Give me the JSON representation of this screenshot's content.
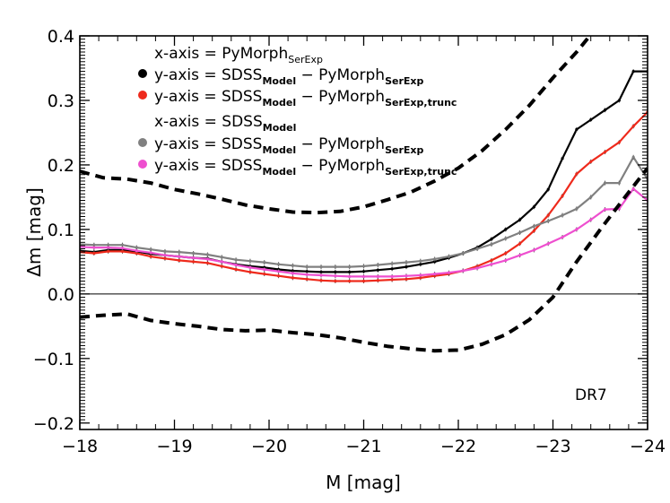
{
  "chart_data": {
    "type": "line",
    "xlabel": "M [mag]",
    "ylabel": "Δm [mag]",
    "xlim": [
      -18,
      -24
    ],
    "ylim": [
      -0.21,
      0.4
    ],
    "x_ticks": [
      -18,
      -19,
      -20,
      -21,
      -22,
      -23,
      -24
    ],
    "x_tick_labels": [
      "−18",
      "−19",
      "−20",
      "−21",
      "−22",
      "−23",
      "−24"
    ],
    "y_ticks": [
      -0.2,
      -0.1,
      0.0,
      0.1,
      0.2,
      0.3,
      0.4
    ],
    "y_tick_labels": [
      "−0.2",
      "−0.1",
      "0.0",
      "0.1",
      "0.2",
      "0.3",
      "0.4"
    ],
    "annotation": "DR7",
    "legend": {
      "placement": "top-left",
      "group1_header": "x-axis = PyMorph",
      "group1_header_sub": "SerExp",
      "group2_header": "x-axis = SDSS",
      "group2_header_sub": "Model"
    },
    "series": [
      {
        "name": "y-axis = SDSS_Model − PyMorph_SerExp",
        "label_parts": [
          "y-axis = SDSS",
          "Model",
          " − PyMorph",
          "SerExp"
        ],
        "color": "#000000",
        "group": 1,
        "x": [
          -18.0,
          -18.15,
          -18.3,
          -18.45,
          -18.6,
          -18.75,
          -18.9,
          -19.05,
          -19.2,
          -19.35,
          -19.5,
          -19.65,
          -19.8,
          -19.95,
          -20.1,
          -20.25,
          -20.4,
          -20.55,
          -20.7,
          -20.85,
          -21.0,
          -21.15,
          -21.3,
          -21.45,
          -21.6,
          -21.75,
          -21.9,
          -22.05,
          -22.2,
          -22.35,
          -22.5,
          -22.65,
          -22.8,
          -22.95,
          -23.1,
          -23.25,
          -23.4,
          -23.55,
          -23.7,
          -23.85,
          -24.0
        ],
        "y": [
          0.067,
          0.065,
          0.068,
          0.068,
          0.066,
          0.062,
          0.06,
          0.058,
          0.056,
          0.055,
          0.05,
          0.046,
          0.043,
          0.041,
          0.038,
          0.036,
          0.035,
          0.034,
          0.034,
          0.034,
          0.035,
          0.037,
          0.039,
          0.042,
          0.046,
          0.05,
          0.056,
          0.063,
          0.072,
          0.085,
          0.1,
          0.115,
          0.135,
          0.162,
          0.21,
          0.255,
          0.27,
          0.285,
          0.3,
          0.345,
          0.345
        ]
      },
      {
        "name": "y-axis = SDSS_Model − PyMorph_SerExp,trunc",
        "label_parts": [
          "y-axis = SDSS",
          "Model",
          " − PyMorph",
          "SerExp,trunc"
        ],
        "color": "#ee2a1c",
        "group": 1,
        "x": [
          -18.0,
          -18.15,
          -18.3,
          -18.45,
          -18.6,
          -18.75,
          -18.9,
          -19.05,
          -19.2,
          -19.35,
          -19.5,
          -19.65,
          -19.8,
          -19.95,
          -20.1,
          -20.25,
          -20.4,
          -20.55,
          -20.7,
          -20.85,
          -21.0,
          -21.15,
          -21.3,
          -21.45,
          -21.6,
          -21.75,
          -21.9,
          -22.05,
          -22.2,
          -22.35,
          -22.5,
          -22.65,
          -22.8,
          -22.95,
          -23.1,
          -23.25,
          -23.4,
          -23.55,
          -23.7,
          -23.85,
          -24.0
        ],
        "y": [
          0.065,
          0.063,
          0.066,
          0.066,
          0.063,
          0.058,
          0.055,
          0.052,
          0.05,
          0.048,
          0.043,
          0.038,
          0.034,
          0.031,
          0.028,
          0.025,
          0.023,
          0.021,
          0.02,
          0.02,
          0.02,
          0.021,
          0.022,
          0.023,
          0.025,
          0.028,
          0.031,
          0.036,
          0.043,
          0.052,
          0.063,
          0.078,
          0.098,
          0.122,
          0.152,
          0.186,
          0.205,
          0.22,
          0.235,
          0.26,
          0.282
        ]
      },
      {
        "name": "y-axis = SDSS_Model − PyMorph_SerExp",
        "label_parts": [
          "y-axis = SDSS",
          "Model",
          " − PyMorph",
          "SerExp"
        ],
        "color": "#808080",
        "group": 2,
        "x": [
          -18.0,
          -18.15,
          -18.3,
          -18.45,
          -18.6,
          -18.75,
          -18.9,
          -19.05,
          -19.2,
          -19.35,
          -19.5,
          -19.65,
          -19.8,
          -19.95,
          -20.1,
          -20.25,
          -20.4,
          -20.55,
          -20.7,
          -20.85,
          -21.0,
          -21.15,
          -21.3,
          -21.45,
          -21.6,
          -21.75,
          -21.9,
          -22.05,
          -22.2,
          -22.35,
          -22.5,
          -22.65,
          -22.8,
          -22.95,
          -23.1,
          -23.25,
          -23.4,
          -23.55,
          -23.7,
          -23.85,
          -24.0
        ],
        "y": [
          0.077,
          0.076,
          0.076,
          0.076,
          0.072,
          0.069,
          0.066,
          0.065,
          0.063,
          0.061,
          0.057,
          0.053,
          0.051,
          0.049,
          0.046,
          0.044,
          0.042,
          0.042,
          0.042,
          0.042,
          0.043,
          0.045,
          0.047,
          0.049,
          0.051,
          0.054,
          0.058,
          0.063,
          0.07,
          0.077,
          0.086,
          0.095,
          0.105,
          0.113,
          0.122,
          0.132,
          0.15,
          0.172,
          0.172,
          0.212,
          0.178
        ]
      },
      {
        "name": "y-axis = SDSS_Model − PyMorph_SerExp,trunc",
        "label_parts": [
          "y-axis = SDSS",
          "Model",
          " − PyMorph",
          "SerExp,trunc"
        ],
        "color": "#ee4fcf",
        "group": 2,
        "x": [
          -18.0,
          -18.15,
          -18.3,
          -18.45,
          -18.6,
          -18.75,
          -18.9,
          -19.05,
          -19.2,
          -19.35,
          -19.5,
          -19.65,
          -19.8,
          -19.95,
          -20.1,
          -20.25,
          -20.4,
          -20.55,
          -20.7,
          -20.85,
          -21.0,
          -21.15,
          -21.3,
          -21.45,
          -21.6,
          -21.75,
          -21.9,
          -22.05,
          -22.2,
          -22.35,
          -22.5,
          -22.65,
          -22.8,
          -22.95,
          -23.1,
          -23.25,
          -23.4,
          -23.55,
          -23.7,
          -23.85,
          -24.0
        ],
        "y": [
          0.073,
          0.072,
          0.072,
          0.071,
          0.067,
          0.064,
          0.06,
          0.058,
          0.056,
          0.054,
          0.05,
          0.045,
          0.041,
          0.038,
          0.035,
          0.032,
          0.03,
          0.029,
          0.028,
          0.027,
          0.027,
          0.027,
          0.027,
          0.028,
          0.029,
          0.031,
          0.033,
          0.036,
          0.04,
          0.046,
          0.052,
          0.06,
          0.068,
          0.078,
          0.088,
          0.1,
          0.115,
          0.131,
          0.132,
          0.163,
          0.145
        ]
      },
      {
        "name": "upper dashed",
        "style": "dashed",
        "color": "#000000",
        "x": [
          -18.0,
          -18.25,
          -18.5,
          -18.75,
          -19.0,
          -19.25,
          -19.5,
          -19.75,
          -20.0,
          -20.25,
          -20.5,
          -20.75,
          -21.0,
          -21.25,
          -21.5,
          -21.75,
          -22.0,
          -22.25,
          -22.5,
          -22.75,
          -23.0,
          -23.25,
          -23.5
        ],
        "y": [
          0.19,
          0.18,
          0.178,
          0.172,
          0.162,
          0.155,
          0.147,
          0.138,
          0.132,
          0.127,
          0.126,
          0.128,
          0.135,
          0.146,
          0.158,
          0.175,
          0.195,
          0.222,
          0.255,
          0.292,
          0.335,
          0.375,
          0.42
        ]
      },
      {
        "name": "lower dashed",
        "style": "dashed",
        "color": "#000000",
        "x": [
          -18.0,
          -18.25,
          -18.5,
          -18.75,
          -19.0,
          -19.25,
          -19.5,
          -19.75,
          -20.0,
          -20.25,
          -20.5,
          -20.75,
          -21.0,
          -21.25,
          -21.5,
          -21.75,
          -22.0,
          -22.25,
          -22.5,
          -22.75,
          -23.0,
          -23.25,
          -23.5,
          -23.75,
          -24.0
        ],
        "y": [
          -0.036,
          -0.033,
          -0.031,
          -0.041,
          -0.046,
          -0.05,
          -0.055,
          -0.057,
          -0.056,
          -0.06,
          -0.063,
          -0.068,
          -0.075,
          -0.081,
          -0.085,
          -0.088,
          -0.087,
          -0.078,
          -0.063,
          -0.04,
          -0.005,
          0.05,
          0.1,
          0.148,
          0.195
        ]
      }
    ]
  }
}
